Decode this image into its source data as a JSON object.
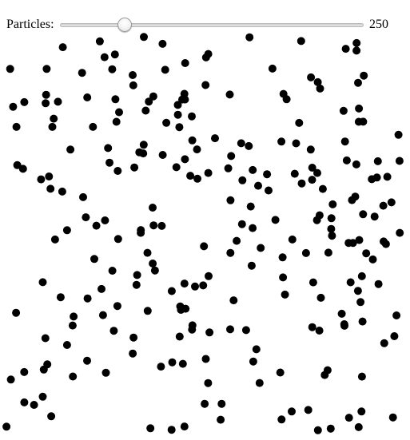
{
  "controls": {
    "particles_label": "Particles:",
    "slider_value": 250,
    "slider_fraction": 0.21,
    "value_text": "250"
  },
  "canvas": {
    "particle_count": 250,
    "particle_color": "#000000",
    "background": "#ffffff"
  }
}
